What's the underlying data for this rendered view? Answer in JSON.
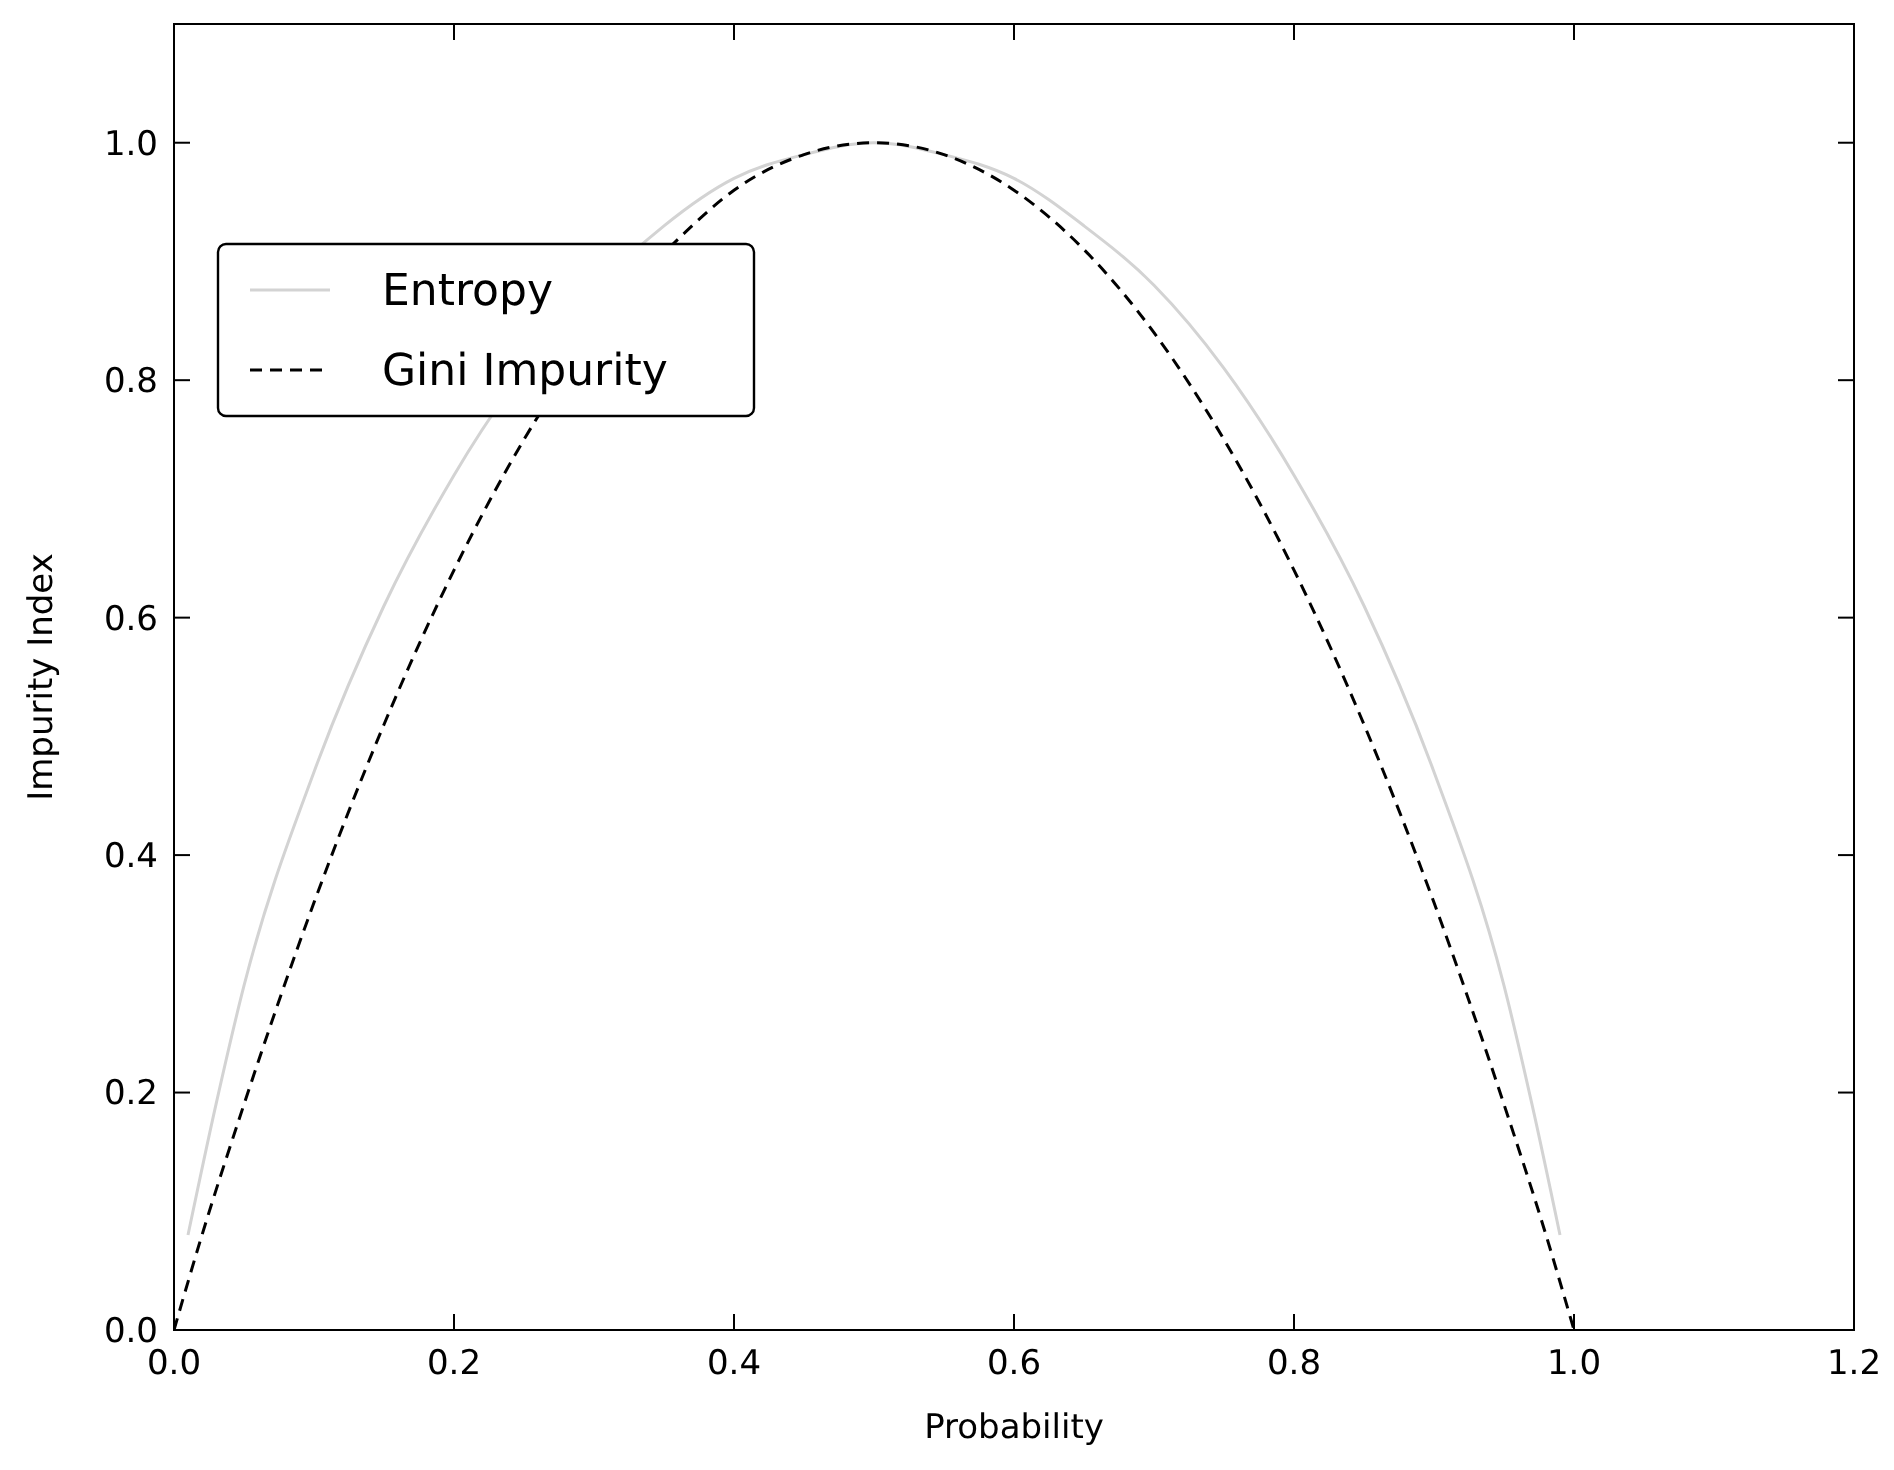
{
  "chart_data": {
    "type": "line",
    "xlabel": "Probability",
    "ylabel": "Impurity Index",
    "xlim": [
      0,
      1.2
    ],
    "xticks": [
      {
        "value": 0,
        "label": "0.0"
      },
      0.2,
      0.4,
      0.6,
      0.8,
      {
        "value": 1,
        "label": "1.0"
      },
      1.2
    ],
    "ylim": [
      0,
      1.1
    ],
    "yticks": [
      {
        "value": 0,
        "label": "0.0"
      },
      0.2,
      0.4,
      0.6,
      0.8,
      {
        "value": 1,
        "label": "1.0"
      }
    ],
    "grid": false,
    "legend": "top left",
    "marker": "none",
    "series": [
      {
        "name": "Entropy",
        "color": "#d3d3d3",
        "line_style": "solid",
        "x": [
          0.01,
          0.03,
          0.05,
          0.1,
          0.15,
          0.2,
          0.35,
          0.4,
          0.45,
          0.5,
          0.55,
          0.6,
          0.65,
          0.7,
          0.75,
          0.8,
          0.85,
          0.9,
          0.95,
          0.97,
          0.99
        ],
        "values": [
          0.08,
          0.19,
          0.29,
          0.47,
          0.61,
          0.72,
          0.93,
          0.97,
          0.99,
          1.0,
          0.99,
          0.97,
          0.93,
          0.88,
          0.81,
          0.72,
          0.61,
          0.47,
          0.29,
          0.19,
          0.08
        ]
      },
      {
        "name": "Gini Impurity",
        "color": "#000000",
        "line_style": "dashed",
        "x": [
          0,
          0.02,
          0.05,
          0.1,
          0.15,
          0.2,
          0.25,
          0.37,
          0.4,
          0.45,
          0.5,
          0.55,
          0.6,
          0.65,
          0.7,
          0.75,
          0.8,
          0.85,
          0.9,
          0.95,
          0.98,
          1.0
        ],
        "values": [
          0,
          0.08,
          0.19,
          0.36,
          0.51,
          0.64,
          0.75,
          0.93,
          0.96,
          0.99,
          1.0,
          0.99,
          0.96,
          0.91,
          0.84,
          0.75,
          0.64,
          0.51,
          0.36,
          0.19,
          0.08,
          0
        ]
      }
    ]
  }
}
